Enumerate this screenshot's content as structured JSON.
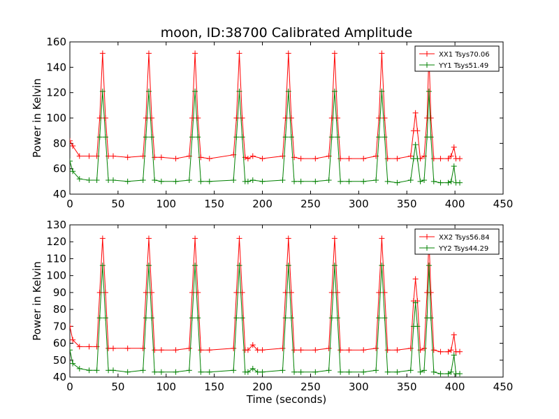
{
  "figure": {
    "title": "moon, ID:38700 Calibrated Amplitude",
    "xlabel": "Time (seconds)"
  },
  "colors": {
    "xx": "#ff0000",
    "yy": "#008000"
  },
  "chart_data": [
    {
      "type": "line",
      "ylabel": "Power in Kelvin",
      "xlim": [
        0,
        450
      ],
      "ylim": [
        40,
        160
      ],
      "xticks": [
        0,
        50,
        100,
        150,
        200,
        250,
        300,
        350,
        400,
        450
      ],
      "yticks": [
        40,
        60,
        80,
        100,
        120,
        140,
        160
      ],
      "legend_position": "top-right",
      "marker": "+",
      "baseline": {
        "xx": 70,
        "yy": 51
      },
      "series": [
        {
          "name": "XX1 Tsys70.06",
          "color": "#ff0000",
          "x": [
            0,
            3,
            10,
            20,
            28,
            31,
            34,
            37,
            40,
            45,
            60,
            76,
            79,
            82,
            85,
            88,
            95,
            110,
            124,
            127,
            130,
            133,
            136,
            145,
            170,
            173,
            176,
            179,
            182,
            185,
            190,
            200,
            221,
            224,
            227,
            230,
            233,
            240,
            255,
            269,
            272,
            275,
            278,
            281,
            290,
            305,
            318,
            321,
            324,
            327,
            330,
            340,
            354,
            357,
            359,
            361,
            364,
            368,
            371,
            373,
            375,
            378,
            385,
            393,
            396,
            399,
            401,
            405
          ],
          "y": [
            82,
            78,
            70,
            70,
            70,
            100,
            151,
            100,
            70,
            70,
            69,
            70,
            100,
            151,
            100,
            69,
            69,
            68,
            70,
            100,
            151,
            100,
            69,
            68,
            71,
            100,
            151,
            100,
            69,
            68,
            70,
            68,
            70,
            100,
            151,
            100,
            69,
            68,
            68,
            70,
            100,
            151,
            100,
            68,
            68,
            68,
            70,
            100,
            151,
            100,
            68,
            68,
            70,
            90,
            104,
            90,
            68,
            70,
            100,
            151,
            100,
            68,
            68,
            68,
            70,
            77,
            68,
            68
          ]
        },
        {
          "name": "YY1 Tsys51.49",
          "color": "#008000",
          "x": [
            0,
            3,
            10,
            20,
            28,
            31,
            34,
            37,
            40,
            45,
            60,
            76,
            79,
            82,
            85,
            88,
            95,
            110,
            124,
            127,
            130,
            133,
            136,
            145,
            170,
            173,
            176,
            179,
            182,
            185,
            190,
            200,
            221,
            224,
            227,
            230,
            233,
            240,
            255,
            269,
            272,
            275,
            278,
            281,
            290,
            305,
            318,
            321,
            324,
            327,
            330,
            340,
            354,
            357,
            359,
            361,
            364,
            368,
            371,
            373,
            375,
            378,
            385,
            393,
            396,
            399,
            401,
            405
          ],
          "y": [
            66,
            58,
            52,
            51,
            51,
            85,
            121,
            85,
            51,
            51,
            50,
            51,
            85,
            121,
            85,
            51,
            50,
            50,
            51,
            85,
            121,
            85,
            50,
            50,
            51,
            85,
            121,
            85,
            50,
            50,
            51,
            50,
            51,
            85,
            121,
            85,
            50,
            50,
            50,
            51,
            85,
            121,
            85,
            50,
            50,
            50,
            51,
            85,
            121,
            85,
            50,
            49,
            51,
            68,
            79,
            68,
            50,
            51,
            85,
            121,
            85,
            50,
            49,
            49,
            50,
            62,
            49,
            49
          ]
        }
      ]
    },
    {
      "type": "line",
      "ylabel": "Power in Kelvin",
      "xlabel": "Time (seconds)",
      "xlim": [
        0,
        450
      ],
      "ylim": [
        40,
        130
      ],
      "xticks": [
        0,
        50,
        100,
        150,
        200,
        250,
        300,
        350,
        400,
        450
      ],
      "yticks": [
        40,
        50,
        60,
        70,
        80,
        90,
        100,
        110,
        120,
        130
      ],
      "legend_position": "top-right",
      "marker": "+",
      "series": [
        {
          "name": "XX2 Tsys56.84",
          "color": "#ff0000",
          "x": [
            0,
            3,
            10,
            20,
            28,
            31,
            34,
            37,
            40,
            45,
            60,
            76,
            79,
            82,
            85,
            88,
            95,
            110,
            124,
            127,
            130,
            133,
            136,
            145,
            170,
            173,
            176,
            179,
            182,
            185,
            190,
            195,
            200,
            221,
            224,
            227,
            230,
            233,
            240,
            255,
            269,
            272,
            275,
            278,
            281,
            290,
            305,
            318,
            321,
            324,
            327,
            330,
            340,
            354,
            357,
            359,
            361,
            364,
            368,
            371,
            373,
            375,
            378,
            385,
            393,
            396,
            399,
            401,
            405
          ],
          "y": [
            70,
            62,
            58,
            58,
            58,
            90,
            122,
            90,
            57,
            57,
            57,
            57,
            90,
            122,
            90,
            56,
            56,
            56,
            57,
            90,
            122,
            90,
            56,
            56,
            57,
            90,
            122,
            90,
            56,
            56,
            59,
            56,
            56,
            57,
            90,
            122,
            90,
            56,
            56,
            56,
            57,
            90,
            122,
            90,
            56,
            56,
            56,
            57,
            90,
            122,
            90,
            56,
            56,
            57,
            85,
            98,
            85,
            56,
            57,
            90,
            122,
            90,
            56,
            55,
            55,
            56,
            65,
            55,
            55
          ]
        },
        {
          "name": "YY2 Tsys44.29",
          "color": "#008000",
          "x": [
            0,
            3,
            10,
            20,
            28,
            31,
            34,
            37,
            40,
            45,
            60,
            76,
            79,
            82,
            85,
            88,
            95,
            110,
            124,
            127,
            130,
            133,
            136,
            145,
            170,
            173,
            176,
            179,
            182,
            185,
            190,
            195,
            200,
            221,
            224,
            227,
            230,
            233,
            240,
            255,
            269,
            272,
            275,
            278,
            281,
            290,
            305,
            318,
            321,
            324,
            327,
            330,
            340,
            354,
            357,
            359,
            361,
            364,
            368,
            371,
            373,
            375,
            378,
            385,
            393,
            396,
            399,
            401,
            405
          ],
          "y": [
            56,
            48,
            45,
            44,
            44,
            75,
            106,
            75,
            44,
            44,
            43,
            44,
            75,
            106,
            75,
            43,
            43,
            43,
            44,
            75,
            106,
            75,
            43,
            43,
            44,
            75,
            106,
            75,
            43,
            43,
            45,
            43,
            43,
            44,
            75,
            106,
            75,
            43,
            43,
            43,
            44,
            75,
            106,
            75,
            43,
            43,
            43,
            44,
            75,
            106,
            75,
            43,
            43,
            44,
            70,
            84,
            70,
            43,
            44,
            75,
            106,
            75,
            43,
            42,
            42,
            43,
            53,
            42,
            42
          ]
        }
      ]
    }
  ]
}
